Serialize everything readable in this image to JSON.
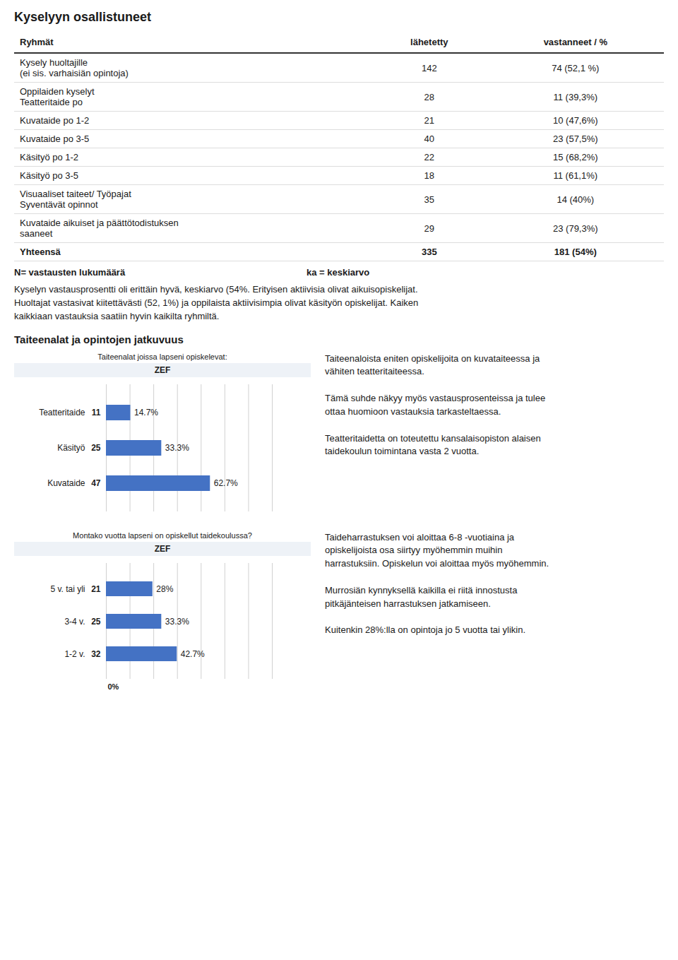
{
  "chart_data": [
    {
      "type": "table",
      "title": "Kyselyyn osallistuneet",
      "columns": [
        "Ryhmät",
        "lähetetty",
        "vastanneet / %"
      ],
      "rows": [
        [
          "Kysely huoltajille\n(ei sis. varhaisiän opintoja)",
          "142",
          "74 (52,1 %)"
        ],
        [
          "Oppilaiden kyselyt\nTeatteritaide  po",
          "28",
          "11 (39,3%)"
        ],
        [
          "Kuvataide po 1-2",
          "21",
          "10 (47,6%)"
        ],
        [
          "Kuvataide po 3-5",
          "40",
          "23 (57,5%)"
        ],
        [
          "Käsityö po 1-2",
          "22",
          "15 (68,2%)"
        ],
        [
          "Käsityö po 3-5",
          "18",
          "11 (61,1%)"
        ],
        [
          "Visuaaliset taiteet/ Työpajat\nSyventävät opinnot",
          "35",
          "14 (40%)"
        ],
        [
          "Kuvataide aikuiset ja päättötodistuksen\nsaaneet",
          "29",
          "23 (79,3%)"
        ],
        [
          "Yhteensä",
          "335",
          "181 (54%)"
        ]
      ],
      "annotations": [
        "N= vastausten lukumäärä",
        "ka = keskiarvo",
        "Kyselyn vastausprosentti oli erittäin hyvä, keskiarvo (54%. Erityisen aktiivisia olivat aikuisopiskelijat.\nHuoltajat vastasivat kiitettävästi (52, 1%) ja oppilaista aktiivisimpia olivat käsityön opiskelijat. Kaiken\nkaikkiaan vastauksia saatiin hyvin kaikilta ryhmiltä."
      ]
    },
    {
      "type": "bar",
      "orientation": "horizontal",
      "section_title": "Taiteenalat ja opintojen jatkuvuus",
      "title": "Taiteenalat joissa lapseni opiskelevat:",
      "subtitle": "ZEF",
      "categories": [
        "Kuvataide",
        "Käsityö",
        "Teatteritaide"
      ],
      "values": [
        47,
        25,
        11
      ],
      "data_labels": true,
      "share_labels": [
        "62.7%",
        "33.3%",
        "14.7%"
      ],
      "color": "#4472c4",
      "xlim": [
        0,
        75
      ],
      "xticks": [
        0,
        10.714285714285714,
        21.428571428571427,
        32.142857142857146,
        42.857142857142854,
        53.57142857142857,
        64.28571428571429,
        75
      ],
      "grid": true,
      "tick_labels": false,
      "annotations": [
        "Taiteenaloista eniten opiskelijoita on kuvataiteessa ja\nvähiten teatteritaiteessa.\n\nTämä suhde näkyy myös vastausprosenteissa ja tulee\nottaa huomioon vastauksia tarkasteltaessa.\n\nTeatteritaidetta on toteutettu kansalaisopiston alaisen\ntaidekoulun toimintana vasta 2 vuotta."
      ]
    },
    {
      "type": "bar",
      "orientation": "horizontal",
      "title": "Montako vuotta lapseni on opiskellut taidekoulussa?",
      "subtitle": "ZEF",
      "categories": [
        "1-2 v.",
        "3-4 v.",
        "5 v. tai yli"
      ],
      "values": [
        32,
        25,
        21
      ],
      "data_labels": true,
      "share_labels": [
        "42.7%",
        "33.3%",
        "28%"
      ],
      "color": "#4472c4",
      "xlim": [
        0,
        75
      ],
      "xticks": [
        0,
        10.714285714285714,
        21.428571428571427,
        32.142857142857146,
        42.857142857142854,
        53.57142857142857,
        64.28571428571429,
        75
      ],
      "grid": true,
      "tick_labels": false,
      "annotations": [
        "Taideharrastuksen voi aloittaa 6-8 -vuotiaina ja\nopiskelijoista osa siirtyy myöhemmin muihin\nharrastuksiin. Opiskelun voi aloittaa myös myöhemmin.\n\n Murrosiän kynnyksellä kaikilla ei riitä innostusta\npitkäjänteisen harrastuksen jatkamiseen.\n\nKuitenkin 28%:lla on opintoja jo 5 vuotta tai ylikin.",
        "0%"
      ]
    }
  ]
}
